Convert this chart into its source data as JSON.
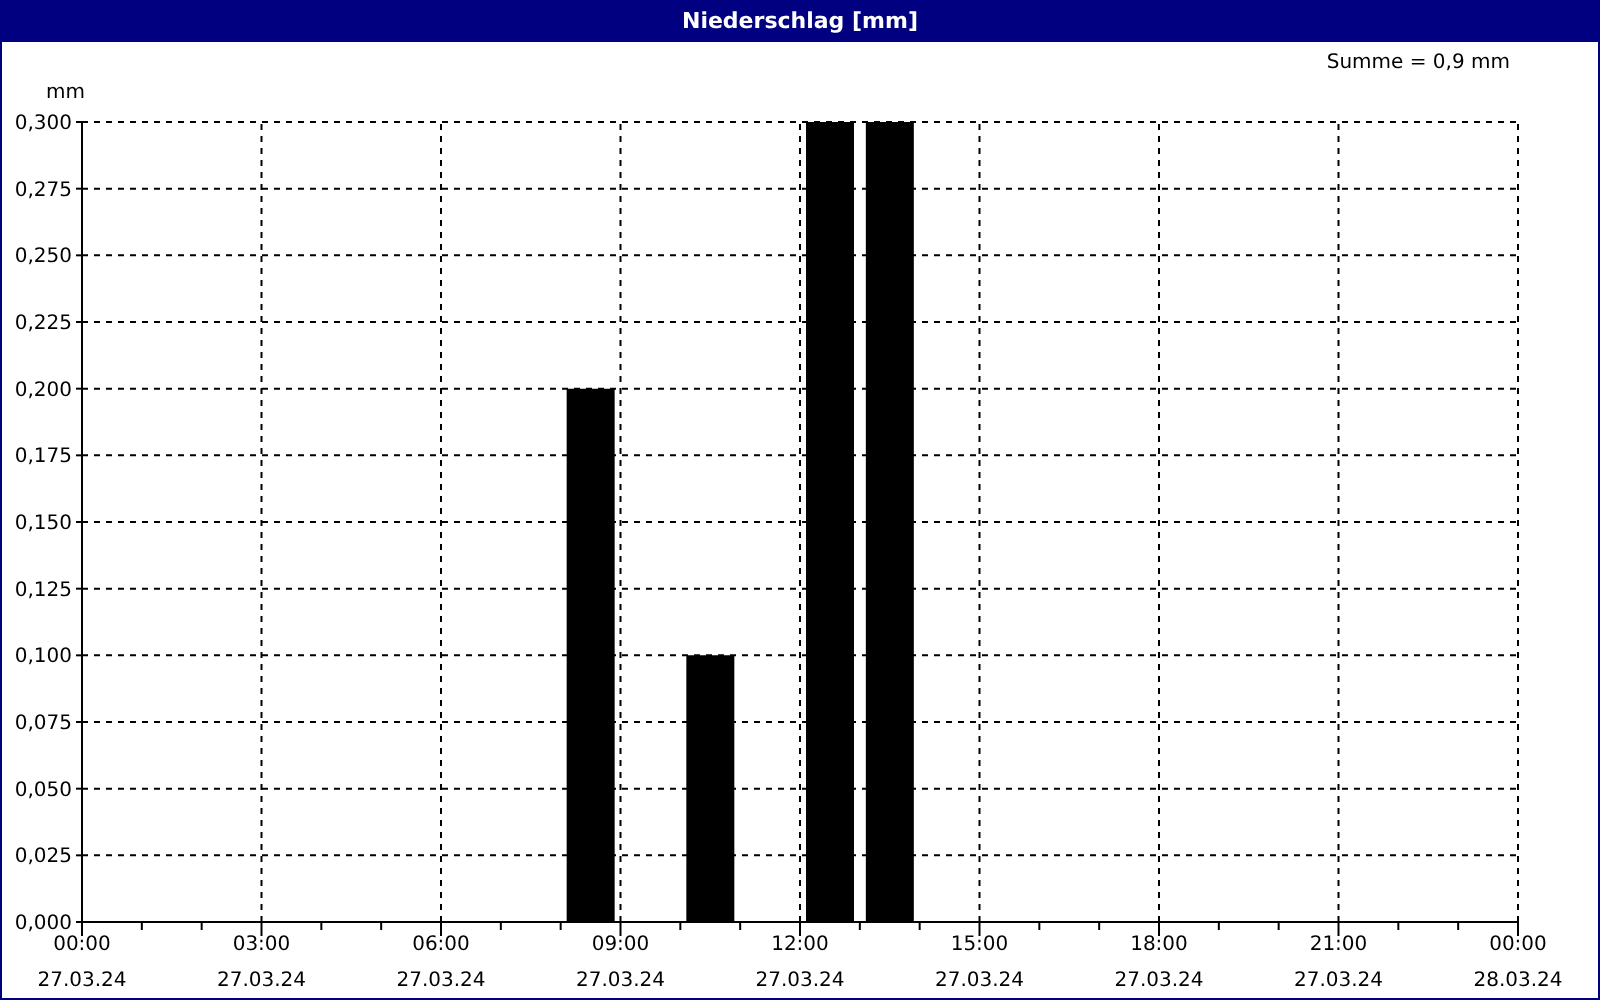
{
  "chart_data": {
    "type": "bar",
    "title": "Niederschlag [mm]",
    "ylabel": "mm",
    "annotations": [
      "Summe = 0,9 mm"
    ],
    "x": [
      "--03-27T08:30",
      "--03-27T10:30",
      "--03-27T12:30",
      "--03-27T13:30"
    ],
    "values": [
      0.2,
      0.1,
      0.3,
      0.3
    ],
    "color": "#000000",
    "xlim": [
      "--03-27T00:00",
      "--03-28T00:00"
    ],
    "xticks": [
      {
        "value": "--03-27T00:00",
        "label": "00:00\n27.03.24"
      },
      {
        "value": "--03-27T01:00",
        "label": null
      },
      {
        "value": "--03-27T02:00",
        "label": null
      },
      {
        "value": "--03-27T03:00",
        "label": "03:00\n27.03.24"
      },
      {
        "value": "--03-27T04:00",
        "label": null
      },
      {
        "value": "--03-27T05:00",
        "label": null
      },
      {
        "value": "--03-27T06:00",
        "label": "06:00\n27.03.24"
      },
      {
        "value": "--03-27T07:00",
        "label": null
      },
      {
        "value": "--03-27T08:00",
        "label": null
      },
      {
        "value": "--03-27T09:00",
        "label": "09:00\n27.03.24"
      },
      {
        "value": "--03-27T10:00",
        "label": null
      },
      {
        "value": "--03-27T11:00",
        "label": null
      },
      {
        "value": "--03-27T12:00",
        "label": "12:00\n27.03.24"
      },
      {
        "value": "--03-27T13:00",
        "label": null
      },
      {
        "value": "--03-27T14:00",
        "label": null
      },
      {
        "value": "--03-27T15:00",
        "label": "15:00\n27.03.24"
      },
      {
        "value": "--03-27T16:00",
        "label": null
      },
      {
        "value": "--03-27T17:00",
        "label": null
      },
      {
        "value": "--03-27T18:00",
        "label": "18:00\n27.03.24"
      },
      {
        "value": "--03-27T19:00",
        "label": null
      },
      {
        "value": "--03-27T20:00",
        "label": null
      },
      {
        "value": "--03-27T21:00",
        "label": "21:00\n27.03.24"
      },
      {
        "value": "--03-27T22:00",
        "label": null
      },
      {
        "value": "--03-27T23:00",
        "label": null
      },
      {
        "value": "--03-28T00:00",
        "label": "00:00\n28.03.24"
      }
    ],
    "ylim": [
      0,
      0.3
    ],
    "yticks": [
      {
        "value": 0,
        "label": "0,000"
      },
      {
        "value": 0.025,
        "label": "0,025"
      },
      {
        "value": 0.05,
        "label": "0,050"
      },
      {
        "value": 0.075,
        "label": "0,075"
      },
      {
        "value": 0.1,
        "label": "0,100"
      },
      {
        "value": 0.125,
        "label": "0,125"
      },
      {
        "value": 0.15,
        "label": "0,150"
      },
      {
        "value": 0.175,
        "label": "0,175"
      },
      {
        "value": 0.2,
        "label": "0,200"
      },
      {
        "value": 0.225,
        "label": "0,225"
      },
      {
        "value": 0.25,
        "label": "0,250"
      },
      {
        "value": 0.275,
        "label": "0,275"
      },
      {
        "value": 0.3,
        "label": "0,300"
      }
    ],
    "grid": true
  }
}
